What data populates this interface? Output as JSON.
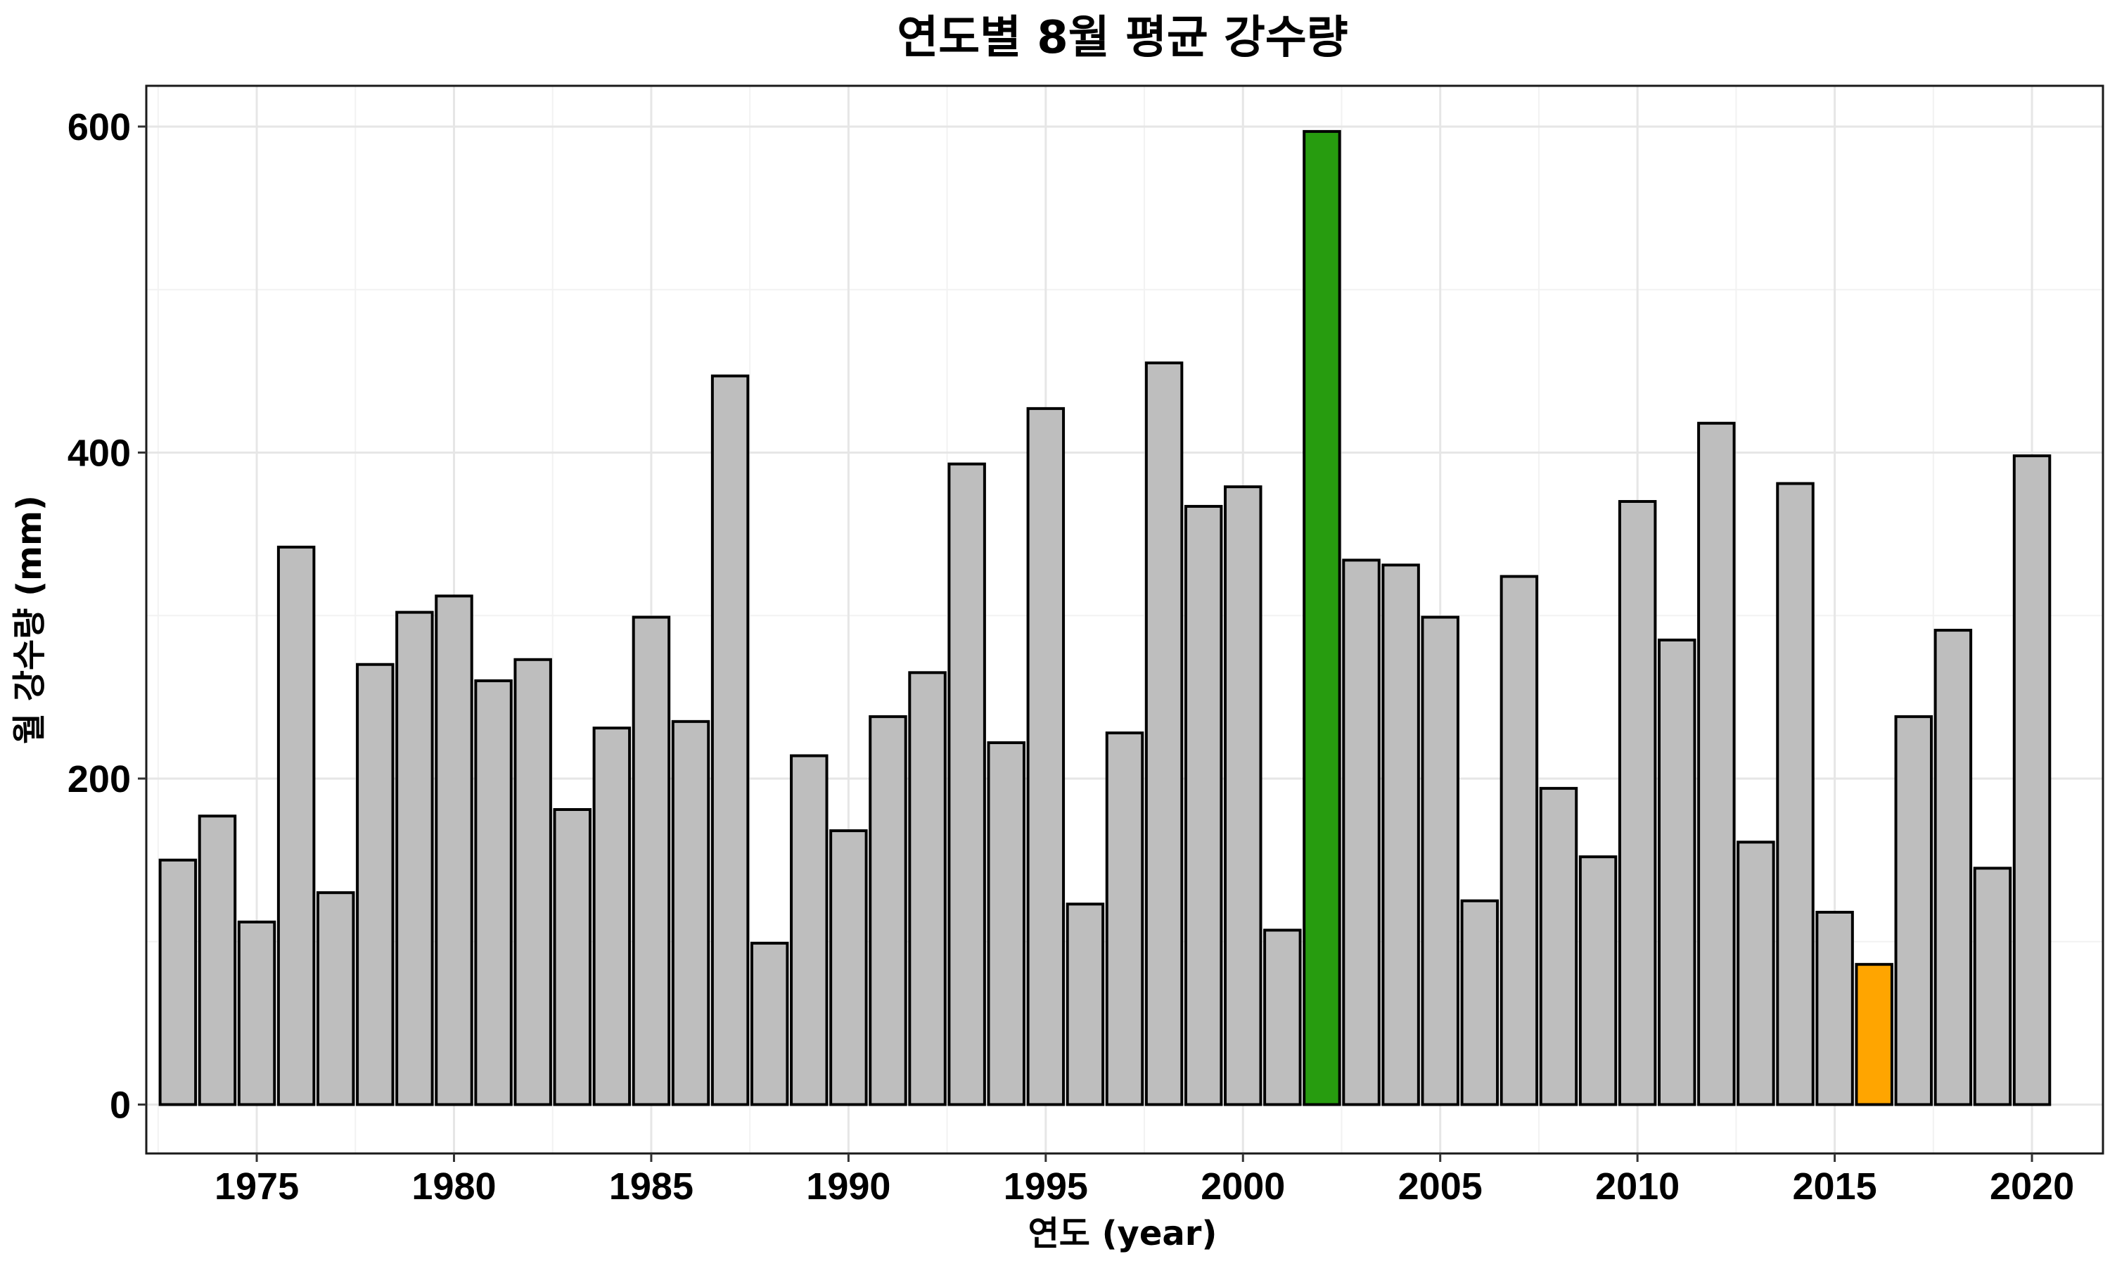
{
  "chart_data": {
    "type": "bar",
    "title": "연도별 8월 평균 강수량",
    "xlabel": "연도 (year)",
    "ylabel": "월 강수량 (mm)",
    "x": [
      1973,
      1974,
      1975,
      1976,
      1977,
      1978,
      1979,
      1980,
      1981,
      1982,
      1983,
      1984,
      1985,
      1986,
      1987,
      1988,
      1989,
      1990,
      1991,
      1992,
      1993,
      1994,
      1995,
      1996,
      1997,
      1998,
      1999,
      2000,
      2001,
      2002,
      2003,
      2004,
      2005,
      2006,
      2007,
      2008,
      2009,
      2010,
      2011,
      2012,
      2013,
      2014,
      2015,
      2016,
      2017,
      2018,
      2019,
      2020
    ],
    "values": [
      150,
      177,
      112,
      342,
      130,
      270,
      302,
      312,
      260,
      273,
      181,
      231,
      299,
      235,
      447,
      99,
      214,
      168,
      238,
      265,
      393,
      222,
      427,
      123,
      228,
      455,
      367,
      379,
      107,
      597,
      334,
      331,
      299,
      125,
      324,
      194,
      152,
      370,
      285,
      418,
      161,
      381,
      118,
      86,
      238,
      291,
      145,
      398
    ],
    "bar_colors": {
      "default": "#bebebe",
      "max": "#279c0f",
      "min": "#ffa500"
    },
    "highlight": {
      "max_year": 2002,
      "min_year": 2016
    },
    "xlim": [
      1972.2,
      2021.8
    ],
    "ylim": [
      -30,
      625
    ],
    "xticks": [
      1975,
      1980,
      1985,
      1990,
      1995,
      2000,
      2005,
      2010,
      2015,
      2020
    ],
    "yticks": [
      0,
      200,
      400,
      600
    ],
    "grid": true,
    "legend": "none"
  }
}
